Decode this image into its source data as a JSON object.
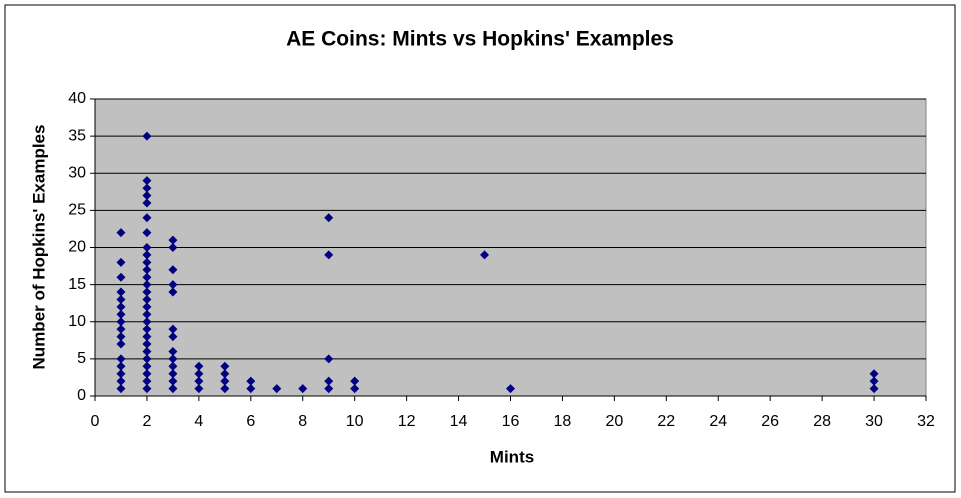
{
  "chart_data": {
    "type": "scatter",
    "title": "AE Coins: Mints vs Hopkins' Examples",
    "x_label": "Mints",
    "y_label": "Number of Hopkins' Examples",
    "x": [
      1,
      1,
      1,
      1,
      1,
      1,
      1,
      1,
      1,
      1,
      1,
      1,
      1,
      1,
      1,
      1,
      2,
      2,
      2,
      2,
      2,
      2,
      2,
      2,
      2,
      2,
      2,
      2,
      2,
      2,
      2,
      2,
      2,
      2,
      2,
      2,
      2,
      2,
      2,
      2,
      2,
      2,
      2,
      3,
      3,
      3,
      3,
      3,
      3,
      3,
      3,
      3,
      3,
      3,
      3,
      3,
      4,
      4,
      4,
      4,
      5,
      5,
      5,
      5,
      6,
      6,
      7,
      8,
      9,
      9,
      9,
      9,
      9,
      10,
      10,
      15,
      16,
      30,
      30,
      30
    ],
    "values": [
      22,
      18,
      16,
      14,
      13,
      12,
      11,
      10,
      9,
      8,
      7,
      5,
      4,
      3,
      2,
      1,
      35,
      29,
      28,
      27,
      26,
      24,
      22,
      20,
      19,
      18,
      17,
      16,
      15,
      14,
      13,
      12,
      11,
      10,
      9,
      8,
      7,
      6,
      5,
      4,
      3,
      2,
      1,
      21,
      20,
      17,
      15,
      14,
      9,
      8,
      6,
      5,
      4,
      3,
      2,
      1,
      4,
      3,
      2,
      1,
      4,
      3,
      2,
      1,
      2,
      1,
      1,
      1,
      24,
      19,
      5,
      2,
      1,
      2,
      1,
      19,
      1,
      3,
      2,
      1
    ],
    "color": "#000080",
    "xlim": [
      0,
      32
    ],
    "xticks": [
      0,
      2,
      4,
      6,
      8,
      10,
      12,
      14,
      16,
      18,
      20,
      22,
      24,
      26,
      28,
      30,
      32
    ],
    "ylim": [
      0,
      40
    ],
    "yticks": [
      0,
      5,
      10,
      15,
      20,
      25,
      30,
      35,
      40
    ],
    "grid": true
  }
}
